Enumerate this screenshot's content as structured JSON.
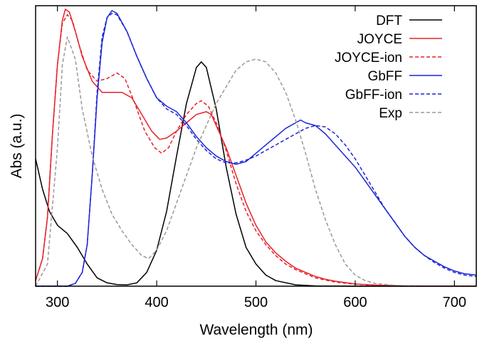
{
  "chart_data": {
    "type": "line",
    "xlabel": "Wavelength (nm)",
    "ylabel": "Abs (a.u.)",
    "xlim": [
      278,
      722
    ],
    "ylim": [
      0,
      1.0
    ],
    "xticks": [
      300,
      400,
      500,
      600,
      700
    ],
    "y_tick_labels": "none",
    "grid": false,
    "legend_position": "top-right",
    "series": [
      {
        "name": "DFT",
        "color": "#000000",
        "dash": "solid",
        "points": [
          [
            278,
            0.46
          ],
          [
            285,
            0.35
          ],
          [
            292,
            0.27
          ],
          [
            300,
            0.22
          ],
          [
            310,
            0.19
          ],
          [
            320,
            0.14
          ],
          [
            330,
            0.08
          ],
          [
            340,
            0.03
          ],
          [
            350,
            0.012
          ],
          [
            360,
            0.006
          ],
          [
            370,
            0.005
          ],
          [
            380,
            0.012
          ],
          [
            390,
            0.05
          ],
          [
            400,
            0.13
          ],
          [
            410,
            0.27
          ],
          [
            420,
            0.47
          ],
          [
            430,
            0.66
          ],
          [
            440,
            0.79
          ],
          [
            445,
            0.81
          ],
          [
            450,
            0.79
          ],
          [
            460,
            0.64
          ],
          [
            470,
            0.43
          ],
          [
            480,
            0.26
          ],
          [
            490,
            0.14
          ],
          [
            500,
            0.08
          ],
          [
            510,
            0.04
          ],
          [
            520,
            0.02
          ],
          [
            540,
            0.005
          ],
          [
            560,
            0.001
          ],
          [
            600,
            0.0
          ],
          [
            722,
            0.0
          ]
        ]
      },
      {
        "name": "JOYCE",
        "color": "#e8202a",
        "dash": "solid",
        "points": [
          [
            278,
            0.02
          ],
          [
            285,
            0.1
          ],
          [
            290,
            0.25
          ],
          [
            295,
            0.55
          ],
          [
            300,
            0.8
          ],
          [
            305,
            0.96
          ],
          [
            308,
            1.0
          ],
          [
            312,
            0.99
          ],
          [
            318,
            0.92
          ],
          [
            325,
            0.83
          ],
          [
            335,
            0.74
          ],
          [
            345,
            0.7
          ],
          [
            355,
            0.7
          ],
          [
            365,
            0.7
          ],
          [
            375,
            0.68
          ],
          [
            385,
            0.62
          ],
          [
            395,
            0.56
          ],
          [
            403,
            0.53
          ],
          [
            410,
            0.535
          ],
          [
            420,
            0.56
          ],
          [
            430,
            0.59
          ],
          [
            440,
            0.62
          ],
          [
            450,
            0.63
          ],
          [
            455,
            0.62
          ],
          [
            460,
            0.58
          ],
          [
            470,
            0.5
          ],
          [
            480,
            0.4
          ],
          [
            490,
            0.3
          ],
          [
            500,
            0.22
          ],
          [
            510,
            0.16
          ],
          [
            520,
            0.12
          ],
          [
            530,
            0.09
          ],
          [
            540,
            0.065
          ],
          [
            550,
            0.05
          ],
          [
            560,
            0.035
          ],
          [
            570,
            0.025
          ],
          [
            580,
            0.018
          ],
          [
            600,
            0.008
          ],
          [
            620,
            0.004
          ],
          [
            650,
            0.001
          ],
          [
            722,
            0.0
          ]
        ]
      },
      {
        "name": "JOYCE-ion",
        "color": "#e8202a",
        "dash": "dashed",
        "points": [
          [
            278,
            0.02
          ],
          [
            285,
            0.1
          ],
          [
            290,
            0.25
          ],
          [
            295,
            0.55
          ],
          [
            300,
            0.8
          ],
          [
            305,
            0.95
          ],
          [
            310,
            0.98
          ],
          [
            315,
            0.96
          ],
          [
            322,
            0.87
          ],
          [
            330,
            0.78
          ],
          [
            340,
            0.74
          ],
          [
            350,
            0.75
          ],
          [
            360,
            0.77
          ],
          [
            368,
            0.75
          ],
          [
            378,
            0.66
          ],
          [
            388,
            0.56
          ],
          [
            398,
            0.5
          ],
          [
            405,
            0.48
          ],
          [
            412,
            0.5
          ],
          [
            420,
            0.56
          ],
          [
            430,
            0.62
          ],
          [
            440,
            0.66
          ],
          [
            445,
            0.67
          ],
          [
            452,
            0.65
          ],
          [
            460,
            0.59
          ],
          [
            470,
            0.49
          ],
          [
            480,
            0.37
          ],
          [
            490,
            0.27
          ],
          [
            500,
            0.2
          ],
          [
            510,
            0.15
          ],
          [
            520,
            0.11
          ],
          [
            530,
            0.08
          ],
          [
            540,
            0.06
          ],
          [
            550,
            0.045
          ],
          [
            560,
            0.03
          ],
          [
            570,
            0.022
          ],
          [
            580,
            0.015
          ],
          [
            600,
            0.007
          ],
          [
            620,
            0.003
          ],
          [
            650,
            0.001
          ],
          [
            722,
            0.0
          ]
        ]
      },
      {
        "name": "GbFF",
        "color": "#1c25d6",
        "dash": "solid",
        "points": [
          [
            278,
            0.0
          ],
          [
            310,
            0.0
          ],
          [
            318,
            0.01
          ],
          [
            325,
            0.05
          ],
          [
            330,
            0.15
          ],
          [
            335,
            0.4
          ],
          [
            340,
            0.68
          ],
          [
            345,
            0.88
          ],
          [
            350,
            0.97
          ],
          [
            355,
            0.995
          ],
          [
            360,
            0.985
          ],
          [
            370,
            0.92
          ],
          [
            380,
            0.83
          ],
          [
            390,
            0.75
          ],
          [
            400,
            0.68
          ],
          [
            410,
            0.65
          ],
          [
            420,
            0.63
          ],
          [
            430,
            0.59
          ],
          [
            440,
            0.54
          ],
          [
            450,
            0.5
          ],
          [
            460,
            0.47
          ],
          [
            470,
            0.45
          ],
          [
            480,
            0.44
          ],
          [
            490,
            0.45
          ],
          [
            500,
            0.48
          ],
          [
            510,
            0.51
          ],
          [
            520,
            0.54
          ],
          [
            530,
            0.57
          ],
          [
            540,
            0.59
          ],
          [
            545,
            0.6
          ],
          [
            550,
            0.59
          ],
          [
            560,
            0.58
          ],
          [
            570,
            0.55
          ],
          [
            580,
            0.51
          ],
          [
            590,
            0.47
          ],
          [
            600,
            0.43
          ],
          [
            610,
            0.38
          ],
          [
            620,
            0.33
          ],
          [
            630,
            0.28
          ],
          [
            640,
            0.23
          ],
          [
            650,
            0.18
          ],
          [
            660,
            0.14
          ],
          [
            670,
            0.11
          ],
          [
            680,
            0.09
          ],
          [
            690,
            0.07
          ],
          [
            700,
            0.055
          ],
          [
            710,
            0.045
          ],
          [
            722,
            0.04
          ]
        ]
      },
      {
        "name": "GbFF-ion",
        "color": "#1c25d6",
        "dash": "dashed",
        "points": [
          [
            278,
            0.0
          ],
          [
            310,
            0.0
          ],
          [
            318,
            0.01
          ],
          [
            325,
            0.05
          ],
          [
            330,
            0.15
          ],
          [
            335,
            0.4
          ],
          [
            340,
            0.7
          ],
          [
            345,
            0.9
          ],
          [
            350,
            0.97
          ],
          [
            355,
            0.985
          ],
          [
            360,
            0.98
          ],
          [
            370,
            0.92
          ],
          [
            380,
            0.83
          ],
          [
            390,
            0.75
          ],
          [
            400,
            0.68
          ],
          [
            410,
            0.64
          ],
          [
            420,
            0.62
          ],
          [
            430,
            0.58
          ],
          [
            440,
            0.53
          ],
          [
            450,
            0.49
          ],
          [
            460,
            0.46
          ],
          [
            470,
            0.445
          ],
          [
            480,
            0.445
          ],
          [
            490,
            0.455
          ],
          [
            500,
            0.47
          ],
          [
            510,
            0.49
          ],
          [
            520,
            0.51
          ],
          [
            530,
            0.53
          ],
          [
            540,
            0.55
          ],
          [
            550,
            0.57
          ],
          [
            560,
            0.58
          ],
          [
            570,
            0.575
          ],
          [
            580,
            0.55
          ],
          [
            590,
            0.51
          ],
          [
            600,
            0.46
          ],
          [
            610,
            0.4
          ],
          [
            620,
            0.34
          ],
          [
            630,
            0.28
          ],
          [
            640,
            0.23
          ],
          [
            650,
            0.18
          ],
          [
            660,
            0.14
          ],
          [
            670,
            0.11
          ],
          [
            680,
            0.085
          ],
          [
            690,
            0.065
          ],
          [
            700,
            0.05
          ],
          [
            710,
            0.04
          ],
          [
            722,
            0.035
          ]
        ]
      },
      {
        "name": "Exp",
        "color": "#999999",
        "dash": "dashed",
        "points": [
          [
            278,
            0.0
          ],
          [
            290,
            0.08
          ],
          [
            300,
            0.5
          ],
          [
            305,
            0.8
          ],
          [
            310,
            0.9
          ],
          [
            318,
            0.82
          ],
          [
            325,
            0.64
          ],
          [
            335,
            0.47
          ],
          [
            345,
            0.35
          ],
          [
            355,
            0.26
          ],
          [
            365,
            0.2
          ],
          [
            375,
            0.15
          ],
          [
            385,
            0.11
          ],
          [
            392,
            0.1
          ],
          [
            400,
            0.13
          ],
          [
            410,
            0.2
          ],
          [
            420,
            0.3
          ],
          [
            430,
            0.4
          ],
          [
            440,
            0.5
          ],
          [
            450,
            0.58
          ],
          [
            460,
            0.66
          ],
          [
            470,
            0.72
          ],
          [
            480,
            0.78
          ],
          [
            490,
            0.81
          ],
          [
            500,
            0.82
          ],
          [
            510,
            0.81
          ],
          [
            520,
            0.77
          ],
          [
            530,
            0.7
          ],
          [
            540,
            0.6
          ],
          [
            550,
            0.48
          ],
          [
            560,
            0.35
          ],
          [
            570,
            0.24
          ],
          [
            580,
            0.15
          ],
          [
            590,
            0.08
          ],
          [
            600,
            0.04
          ],
          [
            610,
            0.02
          ],
          [
            620,
            0.01
          ],
          [
            640,
            0.003
          ],
          [
            660,
            0.0
          ],
          [
            722,
            0.0
          ]
        ]
      }
    ]
  }
}
